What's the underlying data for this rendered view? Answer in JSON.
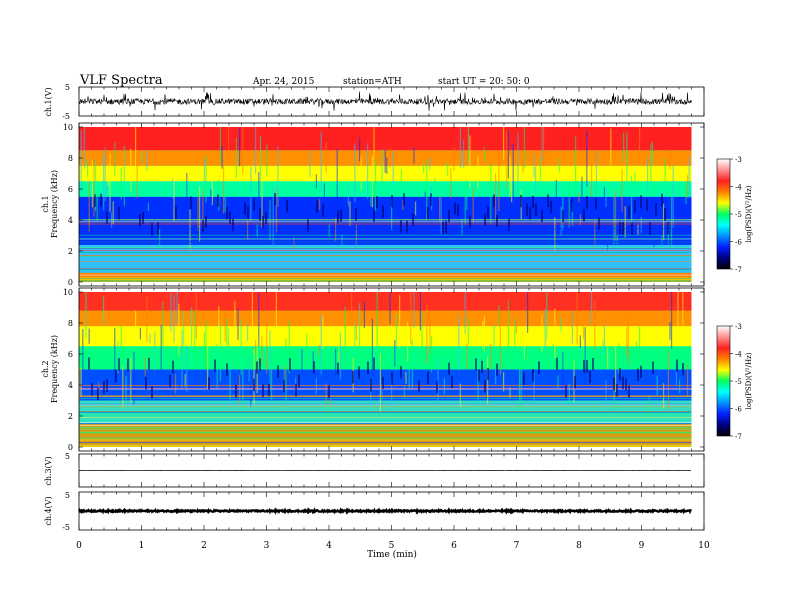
{
  "header": {
    "title": "VLF  Spectra",
    "date": "Apr. 24, 2015",
    "station": "station=ATH",
    "start": "start  UT =   20: 50: 0"
  },
  "colorbar": {
    "label": "log(PSD)(V²/Hz)",
    "ticks": [
      "-3",
      "-4",
      "-5",
      "-6",
      "-7"
    ],
    "colors": [
      "#ffffff",
      "#ff9090",
      "#ff2020",
      "#ff8000",
      "#ffff00",
      "#00ff60",
      "#00ffff",
      "#0090ff",
      "#0020ff",
      "#000080",
      "#000000"
    ]
  },
  "chart_data": [
    {
      "type": "line",
      "name": "ch1-waveform",
      "ylabel": "ch.1(V)",
      "ylim": [
        -5,
        5
      ],
      "yticks": [
        "5",
        "-5"
      ],
      "xlim": [
        0,
        10
      ],
      "amplitude_typical": 1.0
    },
    {
      "type": "heatmap",
      "name": "ch1-spectrogram",
      "ylabel_top": "ch.1",
      "ylabel": "Frequency (kHz)",
      "ylim": [
        0,
        10
      ],
      "yticks": [
        "0",
        "2",
        "4",
        "6",
        "8",
        "10"
      ],
      "xlim": [
        0,
        9.8
      ],
      "bands": [
        {
          "from": 0,
          "to": 0.6,
          "color": "#ff8000"
        },
        {
          "from": 0.6,
          "to": 2.4,
          "color": "#30c0ff"
        },
        {
          "from": 2.4,
          "to": 5.5,
          "color": "#0030ff"
        },
        {
          "from": 5.5,
          "to": 6.5,
          "color": "#00ffa0"
        },
        {
          "from": 6.5,
          "to": 7.5,
          "color": "#ffff00"
        },
        {
          "from": 7.5,
          "to": 8.5,
          "color": "#ff9000"
        },
        {
          "from": 8.5,
          "to": 10,
          "color": "#ff2020"
        }
      ]
    },
    {
      "type": "heatmap",
      "name": "ch2-spectrogram",
      "ylabel_top": "ch.2",
      "ylabel": "Frequency (kHz)",
      "ylim": [
        0,
        10
      ],
      "yticks": [
        "0",
        "2",
        "4",
        "6",
        "8",
        "10"
      ],
      "xlim": [
        0,
        9.8
      ],
      "bands": [
        {
          "from": 0,
          "to": 1.5,
          "color": "#d0a020"
        },
        {
          "from": 1.5,
          "to": 3.0,
          "color": "#30e0c0"
        },
        {
          "from": 3.0,
          "to": 5.0,
          "color": "#0050ff"
        },
        {
          "from": 5.0,
          "to": 6.5,
          "color": "#00ff80"
        },
        {
          "from": 6.5,
          "to": 7.8,
          "color": "#ffff00"
        },
        {
          "from": 7.8,
          "to": 8.8,
          "color": "#ff9000"
        },
        {
          "from": 8.8,
          "to": 10,
          "color": "#ff3020"
        }
      ]
    },
    {
      "type": "line",
      "name": "ch3-waveform",
      "ylabel": "ch.3(V)",
      "ylim": [
        -5,
        5
      ],
      "yticks": [
        "5",
        "-5"
      ],
      "xlim": [
        0,
        10
      ],
      "amplitude_typical": 0.05
    },
    {
      "type": "line",
      "name": "ch4-waveform",
      "ylabel": "ch.4(V)",
      "ylim": [
        -5,
        5
      ],
      "yticks": [
        "5",
        "-5"
      ],
      "xlim": [
        0,
        10
      ],
      "amplitude_typical": 0.2
    }
  ],
  "xaxis": {
    "label": "Time  (min)",
    "ticks": [
      "0",
      "1",
      "2",
      "3",
      "4",
      "5",
      "6",
      "7",
      "8",
      "9",
      "10"
    ]
  }
}
